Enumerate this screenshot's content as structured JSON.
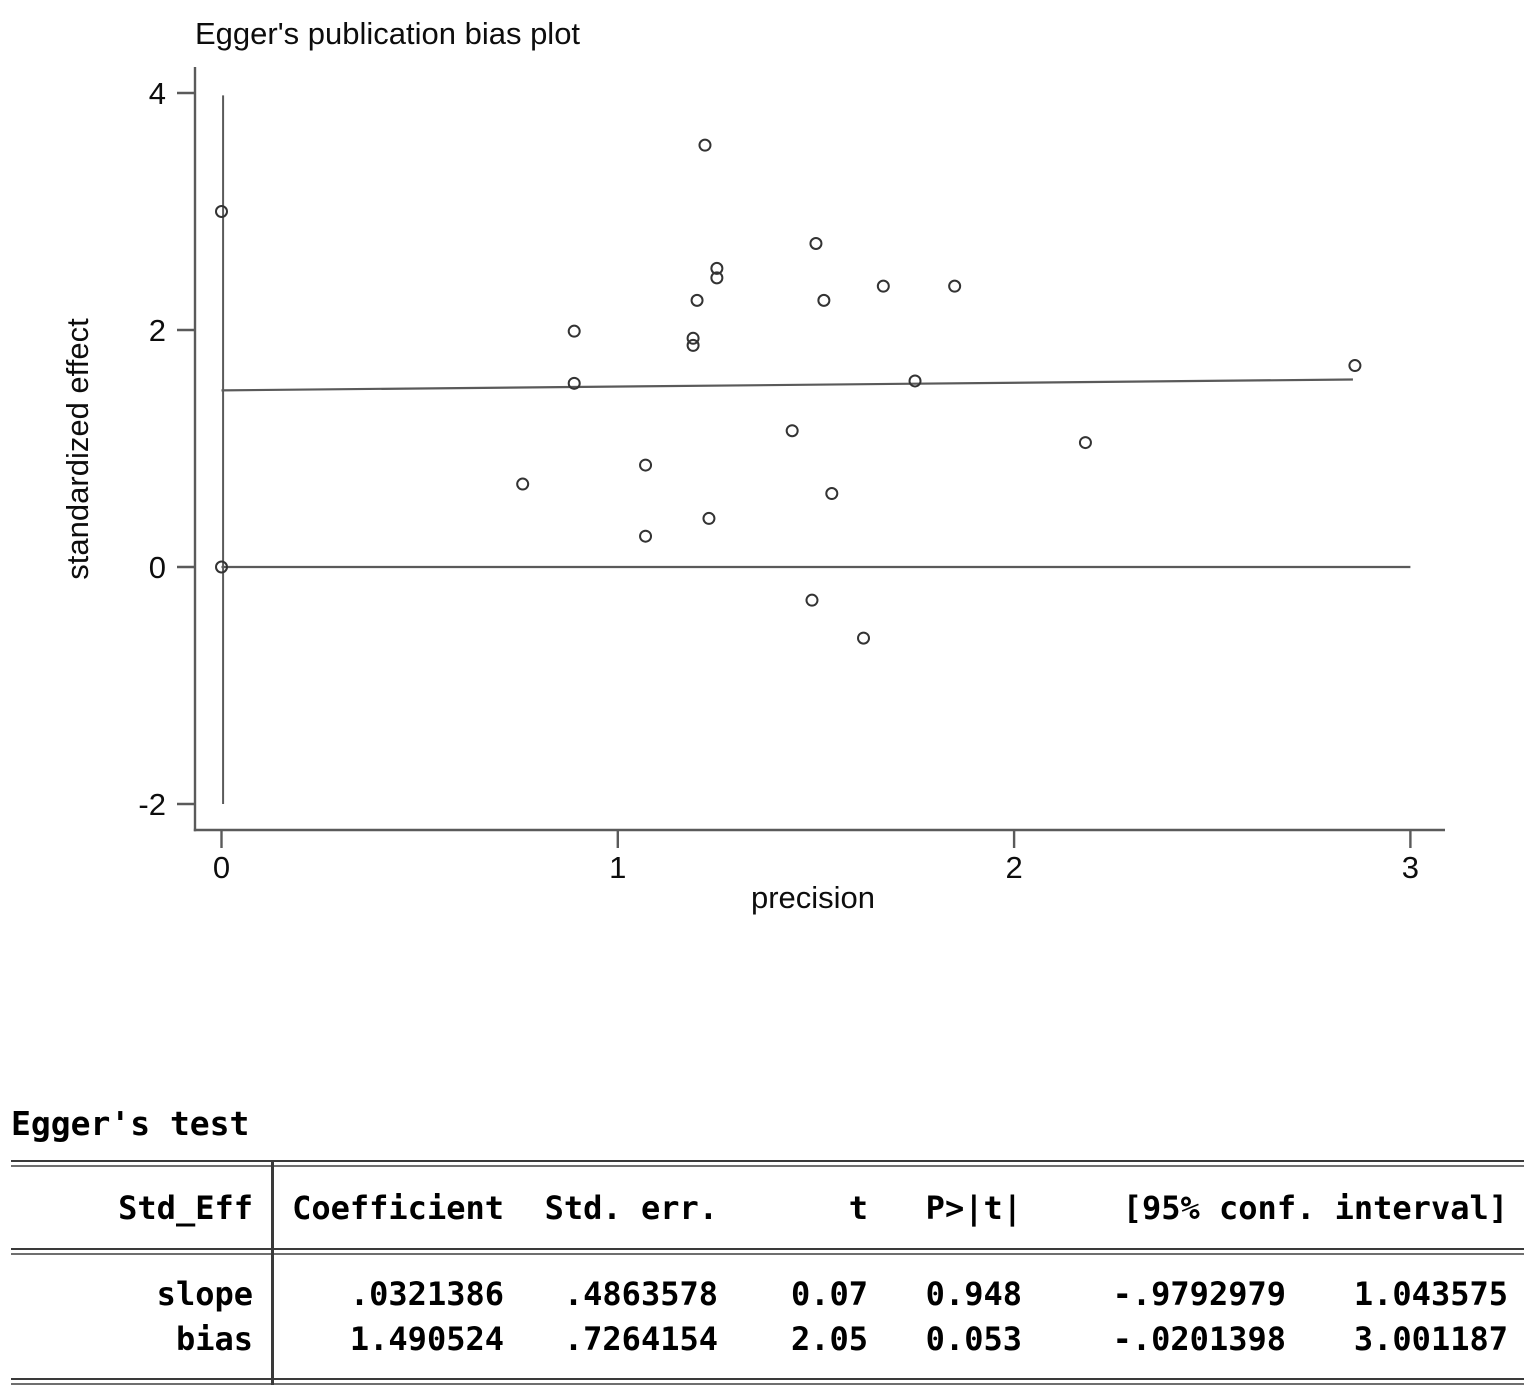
{
  "chart": {
    "title": "Egger's publication bias plot",
    "xlabel": "precision",
    "ylabel": "standardized effect"
  },
  "chart_data": {
    "type": "scatter",
    "title": "Egger's publication bias plot",
    "xlabel": "precision",
    "ylabel": "standardized effect",
    "xlim": [
      -0.07,
      3.09
    ],
    "ylim": [
      -2.22,
      4.22
    ],
    "x_ticks": [
      0,
      1,
      2,
      3
    ],
    "y_ticks": [
      4,
      2,
      0,
      -2
    ],
    "grid": false,
    "legend": "none",
    "marker": "open-circle",
    "line_color": "#5a5a5a",
    "marker_color": "#333333",
    "text_color": "#0d0d0d",
    "points": [
      [
        0.0,
        3.0
      ],
      [
        0.0,
        0.0
      ],
      [
        1.22,
        3.56
      ],
      [
        1.5,
        2.73
      ],
      [
        1.25,
        2.52
      ],
      [
        1.25,
        2.44
      ],
      [
        1.2,
        2.25
      ],
      [
        1.52,
        2.25
      ],
      [
        1.67,
        2.37
      ],
      [
        1.85,
        2.37
      ],
      [
        0.89,
        1.99
      ],
      [
        0.89,
        1.55
      ],
      [
        1.19,
        1.93
      ],
      [
        1.19,
        1.87
      ],
      [
        1.44,
        1.15
      ],
      [
        1.07,
        0.86
      ],
      [
        0.76,
        0.7
      ],
      [
        1.54,
        0.62
      ],
      [
        1.23,
        0.41
      ],
      [
        1.07,
        0.26
      ],
      [
        1.49,
        -0.28
      ],
      [
        1.62,
        -0.6
      ],
      [
        1.75,
        1.57
      ],
      [
        2.18,
        1.05
      ],
      [
        2.86,
        1.7
      ]
    ],
    "regression_line": {
      "intercept": 1.490524,
      "slope": 0.0321386,
      "x_from": 0,
      "x_to": 2.855
    },
    "zero_line": {
      "y": 0,
      "x_from": 0,
      "x_to": 3.0
    },
    "vertical_line": {
      "x": 0.004,
      "y_from": -2.0,
      "y_to": 3.98
    }
  },
  "table": {
    "title": "Egger's test",
    "columns": [
      "Std_Eff",
      "Coefficient",
      "Std. err.",
      "t",
      "P>|t|",
      "[95% conf. interval]"
    ],
    "rows": [
      {
        "label": "slope",
        "coefficient": ".0321386",
        "std_err": ".4863578",
        "t": "0.07",
        "p": "0.948",
        "ci_low": "-.9792979",
        "ci_high": "1.043575"
      },
      {
        "label": "bias",
        "coefficient": "1.490524",
        "std_err": ".7264154",
        "t": "2.05",
        "p": "0.053",
        "ci_low": "-.0201398",
        "ci_high": "3.001187"
      }
    ]
  }
}
